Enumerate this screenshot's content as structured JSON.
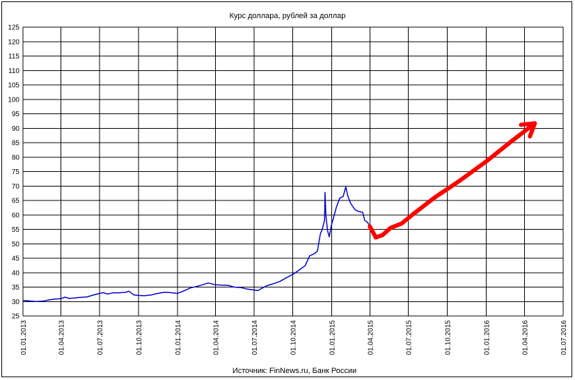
{
  "chart_data": {
    "type": "line",
    "title": "Курс доллара, рублей за доллар",
    "source": "Источник: FinNews.ru, Банк России",
    "xlabel": "",
    "ylabel": "",
    "ylim": [
      25,
      125
    ],
    "yticks": [
      25,
      30,
      35,
      40,
      45,
      50,
      55,
      60,
      65,
      70,
      75,
      80,
      85,
      90,
      95,
      100,
      105,
      110,
      115,
      120,
      125
    ],
    "xlim": [
      "2013-01-01",
      "2016-07-01"
    ],
    "xticks": [
      {
        "date": "2013-01-01",
        "label": "01.01.2013"
      },
      {
        "date": "2013-04-01",
        "label": "01.04.2013"
      },
      {
        "date": "2013-07-01",
        "label": "01.07.2013"
      },
      {
        "date": "2013-10-01",
        "label": "01.10.2013"
      },
      {
        "date": "2014-01-01",
        "label": "01.01.2014"
      },
      {
        "date": "2014-04-01",
        "label": "01.04.2014"
      },
      {
        "date": "2014-07-01",
        "label": "01.07.2014"
      },
      {
        "date": "2014-10-01",
        "label": "01.10.2014"
      },
      {
        "date": "2015-01-01",
        "label": "01.01.2015"
      },
      {
        "date": "2015-04-01",
        "label": "01.04.2015"
      },
      {
        "date": "2015-07-01",
        "label": "01.07.2015"
      },
      {
        "date": "2015-10-01",
        "label": "01.10.2015"
      },
      {
        "date": "2016-01-01",
        "label": "01.01.2016"
      },
      {
        "date": "2016-04-01",
        "label": "01.04.2016"
      },
      {
        "date": "2016-07-01",
        "label": "01.07.2016"
      }
    ],
    "grid": true,
    "series": [
      {
        "color": "#0000cc",
        "points": [
          [
            "2013-01-01",
            30.4
          ],
          [
            "2013-01-15",
            30.2
          ],
          [
            "2013-02-01",
            30.0
          ],
          [
            "2013-02-15",
            30.1
          ],
          [
            "2013-03-01",
            30.5
          ],
          [
            "2013-03-15",
            30.8
          ],
          [
            "2013-04-01",
            31.0
          ],
          [
            "2013-04-10",
            31.5
          ],
          [
            "2013-04-20",
            31.1
          ],
          [
            "2013-05-01",
            31.2
          ],
          [
            "2013-05-15",
            31.4
          ],
          [
            "2013-06-01",
            31.6
          ],
          [
            "2013-06-15",
            32.2
          ],
          [
            "2013-07-01",
            32.8
          ],
          [
            "2013-07-10",
            33.1
          ],
          [
            "2013-07-20",
            32.6
          ],
          [
            "2013-08-01",
            33.0
          ],
          [
            "2013-08-15",
            33.0
          ],
          [
            "2013-09-01",
            33.2
          ],
          [
            "2013-09-08",
            33.6
          ],
          [
            "2013-09-20",
            32.3
          ],
          [
            "2013-10-01",
            32.1
          ],
          [
            "2013-10-15",
            32.0
          ],
          [
            "2013-11-01",
            32.3
          ],
          [
            "2013-11-15",
            32.8
          ],
          [
            "2013-12-01",
            33.2
          ],
          [
            "2013-12-15",
            33.1
          ],
          [
            "2014-01-01",
            32.8
          ],
          [
            "2014-01-15",
            33.6
          ],
          [
            "2014-02-01",
            34.7
          ],
          [
            "2014-02-15",
            35.2
          ],
          [
            "2014-03-01",
            35.8
          ],
          [
            "2014-03-15",
            36.4
          ],
          [
            "2014-04-01",
            35.8
          ],
          [
            "2014-04-15",
            35.7
          ],
          [
            "2014-05-01",
            35.6
          ],
          [
            "2014-05-15",
            35.0
          ],
          [
            "2014-06-01",
            34.8
          ],
          [
            "2014-06-15",
            34.3
          ],
          [
            "2014-07-01",
            34.0
          ],
          [
            "2014-07-10",
            33.8
          ],
          [
            "2014-07-20",
            34.6
          ],
          [
            "2014-08-01",
            35.5
          ],
          [
            "2014-08-15",
            36.1
          ],
          [
            "2014-09-01",
            37.0
          ],
          [
            "2014-09-15",
            38.2
          ],
          [
            "2014-10-01",
            39.4
          ],
          [
            "2014-10-15",
            40.8
          ],
          [
            "2014-10-30",
            42.4
          ],
          [
            "2014-11-10",
            45.9
          ],
          [
            "2014-11-20",
            46.5
          ],
          [
            "2014-11-28",
            47.4
          ],
          [
            "2014-12-05",
            53.4
          ],
          [
            "2014-12-10",
            55.2
          ],
          [
            "2014-12-15",
            58.3
          ],
          [
            "2014-12-16",
            67.8
          ],
          [
            "2014-12-18",
            60.0
          ],
          [
            "2014-12-22",
            54.6
          ],
          [
            "2014-12-26",
            52.4
          ],
          [
            "2014-12-31",
            56.3
          ],
          [
            "2015-01-12",
            62.7
          ],
          [
            "2015-01-20",
            65.8
          ],
          [
            "2015-01-28",
            66.4
          ],
          [
            "2015-02-03",
            69.7
          ],
          [
            "2015-02-08",
            66.5
          ],
          [
            "2015-02-15",
            63.9
          ],
          [
            "2015-02-25",
            61.8
          ],
          [
            "2015-03-05",
            61.2
          ],
          [
            "2015-03-15",
            60.9
          ],
          [
            "2015-03-20",
            58.0
          ],
          [
            "2015-03-26",
            57.5
          ],
          [
            "2015-03-31",
            56.4
          ]
        ]
      },
      {
        "color": "#ff0000",
        "arrow": true,
        "points": [
          [
            "2015-04-01",
            56.0
          ],
          [
            "2015-04-15",
            52.2
          ],
          [
            "2015-05-01",
            53.0
          ],
          [
            "2015-05-20",
            55.5
          ],
          [
            "2015-06-15",
            57.0
          ],
          [
            "2015-07-10",
            60.0
          ],
          [
            "2015-09-01",
            66.0
          ],
          [
            "2015-11-01",
            72.0
          ],
          [
            "2016-01-01",
            78.5
          ],
          [
            "2016-03-01",
            85.5
          ],
          [
            "2016-04-25",
            91.7
          ]
        ]
      }
    ]
  }
}
